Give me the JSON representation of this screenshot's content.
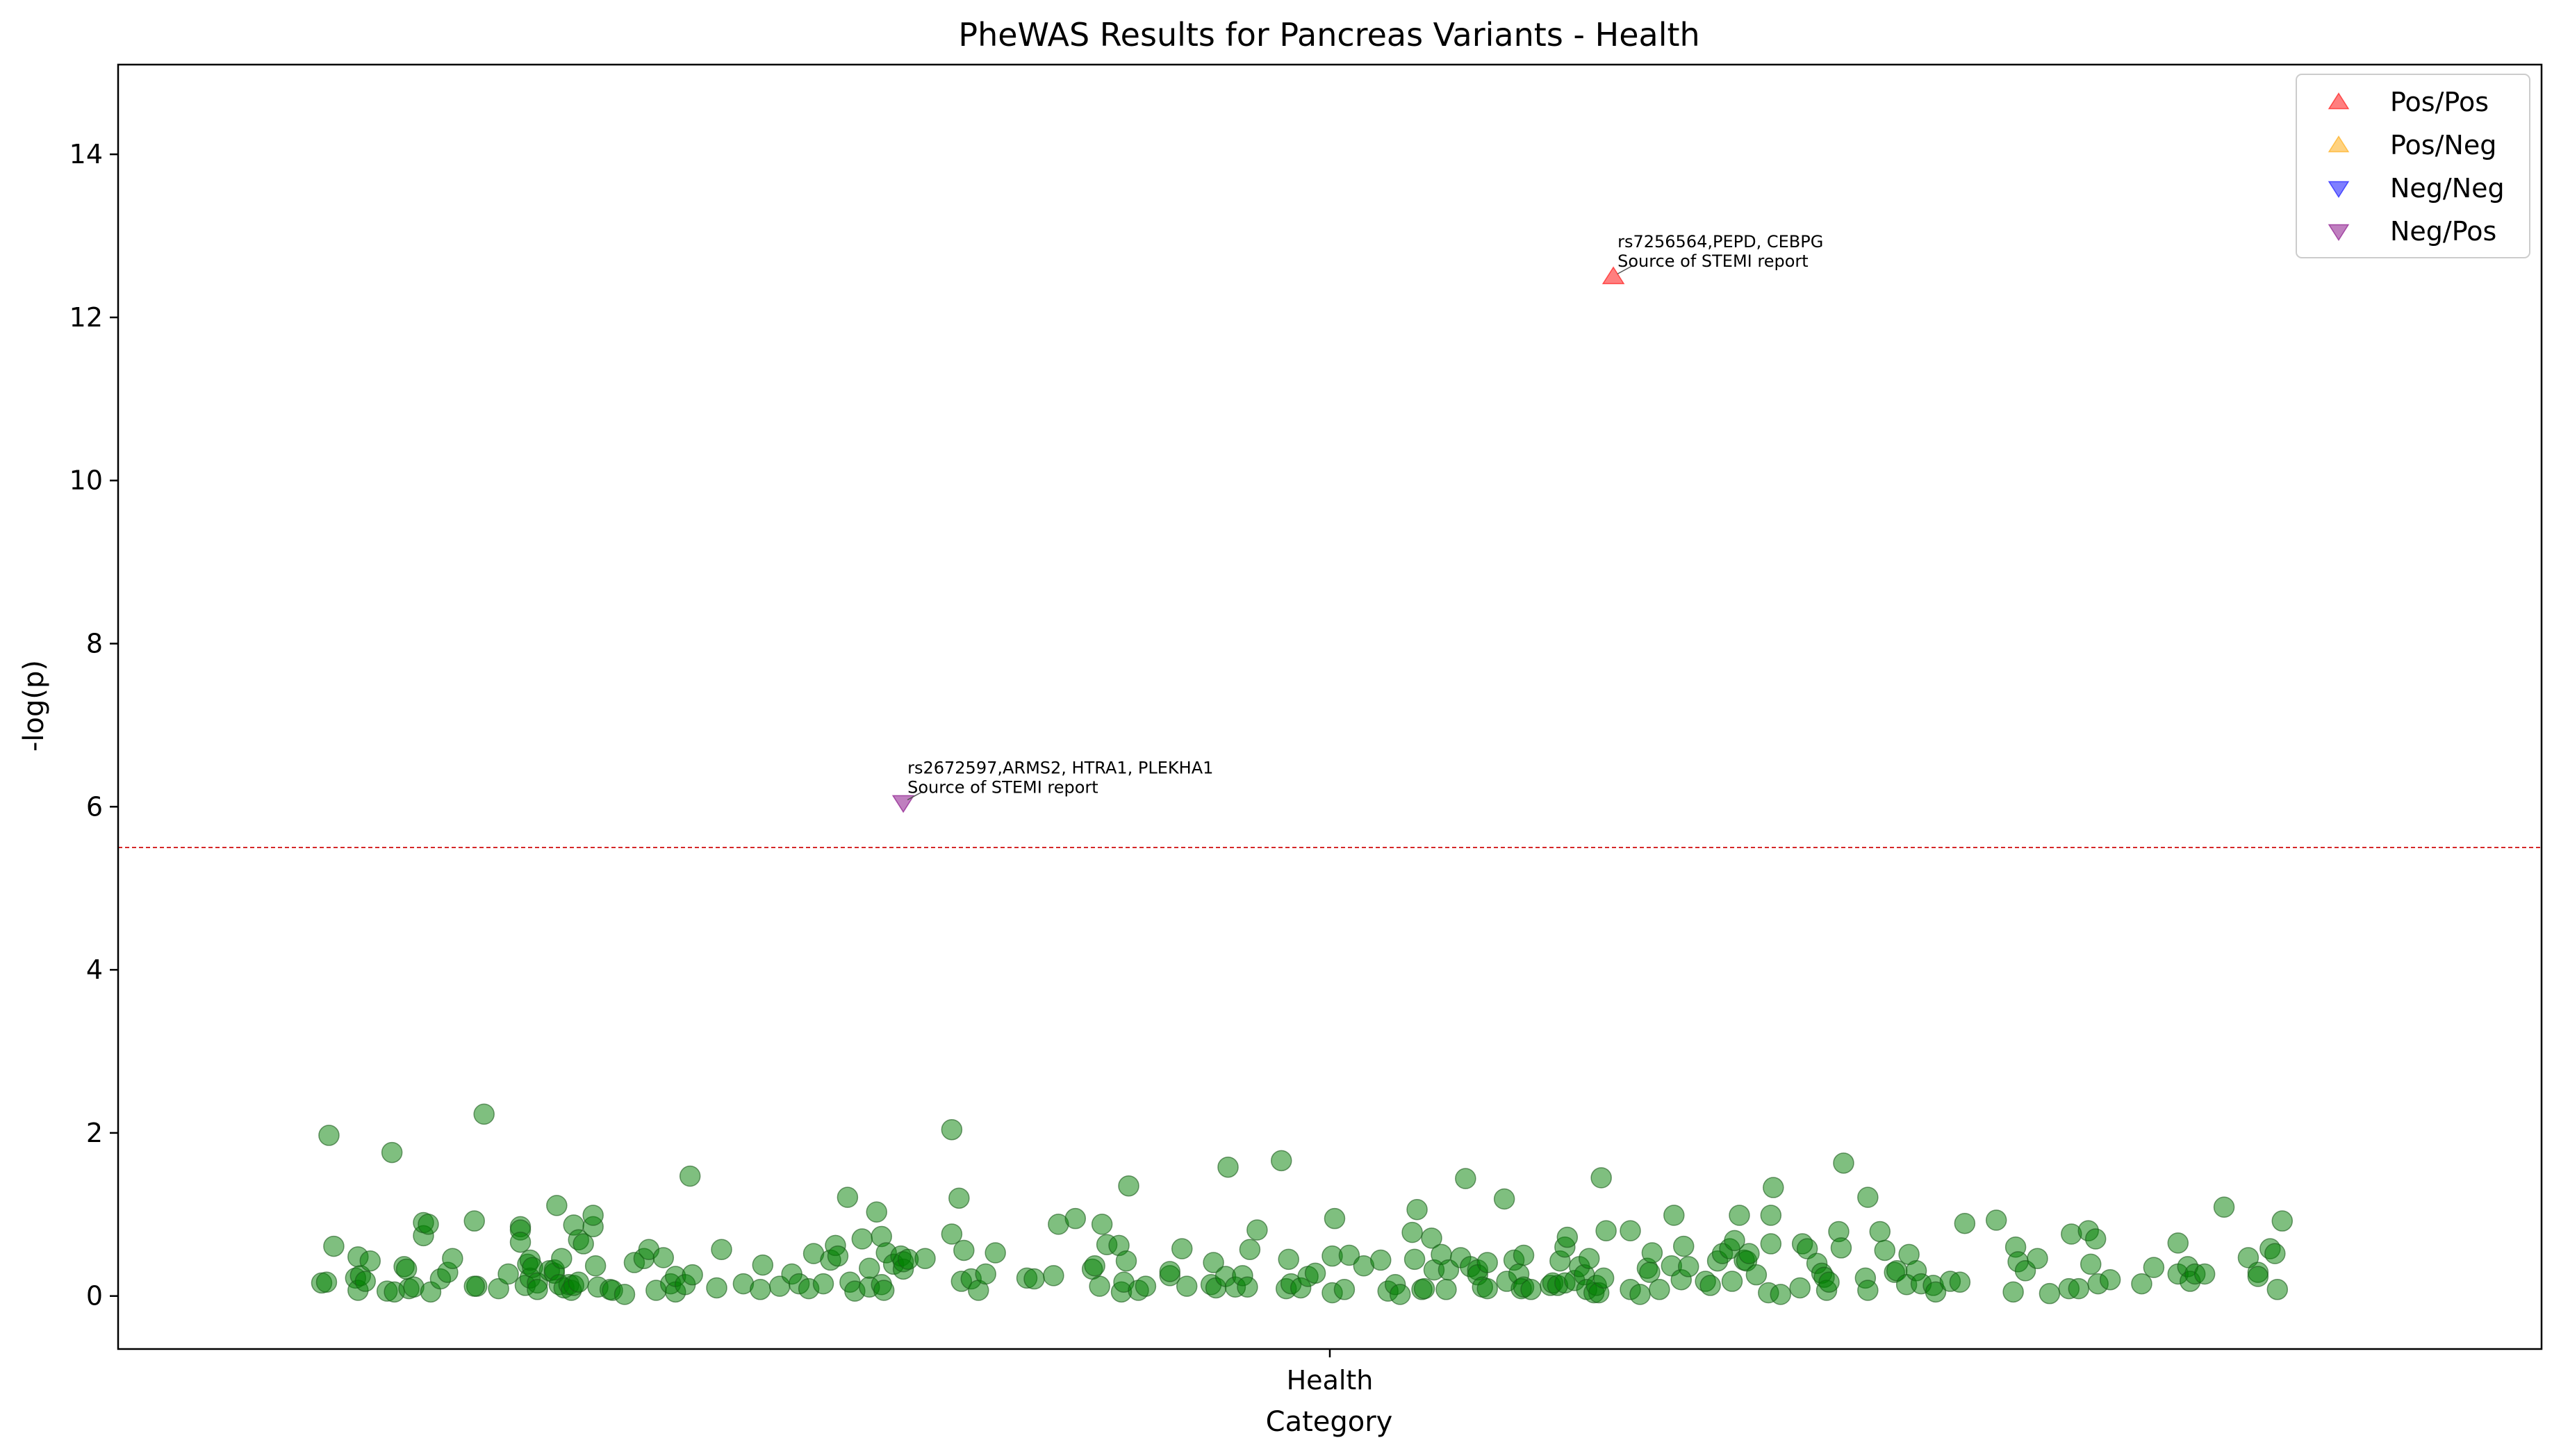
{
  "chart_data": {
    "type": "scatter",
    "title": "PheWAS Results for Pancreas Variants - Health",
    "xlabel": "Category",
    "ylabel": "-log(p)",
    "x_categories": [
      "Health"
    ],
    "ylim": [
      -0.65,
      15.1
    ],
    "yticks": [
      0,
      2,
      4,
      6,
      8,
      10,
      12,
      14
    ],
    "threshold": 5.5,
    "threshold_color": "#d62728",
    "grid": false,
    "legend_position": "top-right",
    "legend": [
      {
        "label": "Pos/Pos",
        "marker": "triangle-up",
        "color": "#ff0000"
      },
      {
        "label": "Pos/Neg",
        "marker": "triangle-up",
        "color": "#ffa500"
      },
      {
        "label": "Neg/Neg",
        "marker": "triangle-down",
        "color": "#0000ff"
      },
      {
        "label": "Neg/Pos",
        "marker": "triangle-down",
        "color": "#800080"
      }
    ],
    "nonsignificant_color": "#008000",
    "significant_points": [
      {
        "x": 0.617,
        "y": 12.5,
        "marker": "triangle-up",
        "color": "#ff0000",
        "annotation_line1": "rs7256564,PEPD, CEBPG",
        "annotation_line2": "Source of STEMI report"
      },
      {
        "x": 0.324,
        "y": 6.05,
        "marker": "triangle-down",
        "color": "#800080",
        "annotation_line1": "rs2672597,ARMS2, HTRA1, PLEKHA1",
        "annotation_line2": "Source of STEMI report"
      }
    ],
    "points": [
      [
        0.084,
        0.16
      ],
      [
        0.086,
        0.17
      ],
      [
        0.087,
        1.97
      ],
      [
        0.089,
        0.61
      ],
      [
        0.098,
        0.22
      ],
      [
        0.099,
        0.48
      ],
      [
        0.099,
        0.07
      ],
      [
        0.1,
        0.25
      ],
      [
        0.102,
        0.18
      ],
      [
        0.104,
        0.43
      ],
      [
        0.111,
        0.06
      ],
      [
        0.113,
        1.76
      ],
      [
        0.114,
        0.05
      ],
      [
        0.118,
        0.36
      ],
      [
        0.119,
        0.33
      ],
      [
        0.12,
        0.09
      ],
      [
        0.122,
        0.11
      ],
      [
        0.126,
        0.74
      ],
      [
        0.126,
        0.9
      ],
      [
        0.128,
        0.88
      ],
      [
        0.129,
        0.05
      ],
      [
        0.133,
        0.21
      ],
      [
        0.136,
        0.29
      ],
      [
        0.138,
        0.46
      ],
      [
        0.147,
        0.92
      ],
      [
        0.148,
        0.12
      ],
      [
        0.147,
        0.12
      ],
      [
        0.151,
        2.23
      ],
      [
        0.157,
        0.09
      ],
      [
        0.161,
        0.27
      ],
      [
        0.166,
        0.85
      ],
      [
        0.166,
        0.81
      ],
      [
        0.166,
        0.66
      ],
      [
        0.168,
        0.13
      ],
      [
        0.169,
        0.39
      ],
      [
        0.17,
        0.22
      ],
      [
        0.17,
        0.44
      ],
      [
        0.171,
        0.35
      ],
      [
        0.173,
        0.16
      ],
      [
        0.173,
        0.08
      ],
      [
        0.178,
        0.31
      ],
      [
        0.18,
        0.28
      ],
      [
        0.18,
        0.32
      ],
      [
        0.181,
        1.11
      ],
      [
        0.182,
        0.14
      ],
      [
        0.183,
        0.46
      ],
      [
        0.184,
        0.1
      ],
      [
        0.186,
        0.14
      ],
      [
        0.187,
        0.07
      ],
      [
        0.188,
        0.87
      ],
      [
        0.188,
        0.13
      ],
      [
        0.19,
        0.17
      ],
      [
        0.19,
        0.69
      ],
      [
        0.192,
        0.64
      ],
      [
        0.196,
        0.85
      ],
      [
        0.196,
        0.99
      ],
      [
        0.197,
        0.37
      ],
      [
        0.198,
        0.11
      ],
      [
        0.203,
        0.08
      ],
      [
        0.204,
        0.07
      ],
      [
        0.209,
        0.02
      ],
      [
        0.213,
        0.41
      ],
      [
        0.217,
        0.46
      ],
      [
        0.219,
        0.57
      ],
      [
        0.222,
        0.07
      ],
      [
        0.225,
        0.47
      ],
      [
        0.228,
        0.15
      ],
      [
        0.23,
        0.05
      ],
      [
        0.23,
        0.24
      ],
      [
        0.234,
        0.14
      ],
      [
        0.236,
        1.47
      ],
      [
        0.237,
        0.26
      ],
      [
        0.247,
        0.1
      ],
      [
        0.249,
        0.57
      ],
      [
        0.258,
        0.15
      ],
      [
        0.265,
        0.08
      ],
      [
        0.266,
        0.38
      ],
      [
        0.273,
        0.12
      ],
      [
        0.278,
        0.27
      ],
      [
        0.281,
        0.15
      ],
      [
        0.285,
        0.09
      ],
      [
        0.287,
        0.52
      ],
      [
        0.291,
        0.15
      ],
      [
        0.294,
        0.44
      ],
      [
        0.296,
        0.62
      ],
      [
        0.297,
        0.49
      ],
      [
        0.301,
        1.21
      ],
      [
        0.302,
        0.17
      ],
      [
        0.304,
        0.06
      ],
      [
        0.307,
        0.7
      ],
      [
        0.31,
        0.11
      ],
      [
        0.31,
        0.34
      ],
      [
        0.313,
        1.03
      ],
      [
        0.315,
        0.73
      ],
      [
        0.315,
        0.14
      ],
      [
        0.316,
        0.07
      ],
      [
        0.317,
        0.53
      ],
      [
        0.32,
        0.39
      ],
      [
        0.323,
        0.49
      ],
      [
        0.324,
        0.33
      ],
      [
        0.324,
        0.42
      ],
      [
        0.326,
        0.45
      ],
      [
        0.333,
        0.46
      ],
      [
        0.344,
        0.76
      ],
      [
        0.344,
        2.04
      ],
      [
        0.347,
        1.2
      ],
      [
        0.348,
        0.18
      ],
      [
        0.349,
        0.56
      ],
      [
        0.352,
        0.21
      ],
      [
        0.355,
        0.07
      ],
      [
        0.358,
        0.27
      ],
      [
        0.362,
        0.53
      ],
      [
        0.375,
        0.22
      ],
      [
        0.378,
        0.21
      ],
      [
        0.386,
        0.25
      ],
      [
        0.388,
        0.88
      ],
      [
        0.395,
        0.95
      ],
      [
        0.402,
        0.33
      ],
      [
        0.403,
        0.37
      ],
      [
        0.405,
        0.12
      ],
      [
        0.406,
        0.88
      ],
      [
        0.408,
        0.63
      ],
      [
        0.413,
        0.62
      ],
      [
        0.414,
        0.05
      ],
      [
        0.415,
        0.17
      ],
      [
        0.416,
        0.43
      ],
      [
        0.417,
        1.35
      ],
      [
        0.421,
        0.07
      ],
      [
        0.424,
        0.12
      ],
      [
        0.434,
        0.25
      ],
      [
        0.434,
        0.3
      ],
      [
        0.439,
        0.58
      ],
      [
        0.441,
        0.12
      ],
      [
        0.451,
        0.14
      ],
      [
        0.452,
        0.41
      ],
      [
        0.453,
        0.1
      ],
      [
        0.457,
        0.24
      ],
      [
        0.458,
        1.58
      ],
      [
        0.461,
        0.11
      ],
      [
        0.464,
        0.25
      ],
      [
        0.466,
        0.11
      ],
      [
        0.467,
        0.57
      ],
      [
        0.47,
        0.81
      ],
      [
        0.48,
        1.66
      ],
      [
        0.482,
        0.09
      ],
      [
        0.483,
        0.45
      ],
      [
        0.484,
        0.15
      ],
      [
        0.488,
        0.1
      ],
      [
        0.491,
        0.24
      ],
      [
        0.494,
        0.28
      ],
      [
        0.501,
        0.04
      ],
      [
        0.501,
        0.49
      ],
      [
        0.502,
        0.95
      ],
      [
        0.506,
        0.08
      ],
      [
        0.508,
        0.5
      ],
      [
        0.514,
        0.37
      ],
      [
        0.521,
        0.44
      ],
      [
        0.524,
        0.06
      ],
      [
        0.527,
        0.14
      ],
      [
        0.529,
        0.02
      ],
      [
        0.534,
        0.78
      ],
      [
        0.535,
        0.45
      ],
      [
        0.536,
        1.06
      ],
      [
        0.538,
        0.08
      ],
      [
        0.539,
        0.09
      ],
      [
        0.542,
        0.71
      ],
      [
        0.543,
        0.32
      ],
      [
        0.546,
        0.51
      ],
      [
        0.548,
        0.08
      ],
      [
        0.549,
        0.32
      ],
      [
        0.554,
        0.47
      ],
      [
        0.556,
        1.44
      ],
      [
        0.558,
        0.36
      ],
      [
        0.561,
        0.32
      ],
      [
        0.561,
        0.26
      ],
      [
        0.563,
        0.11
      ],
      [
        0.565,
        0.41
      ],
      [
        0.565,
        0.09
      ],
      [
        0.572,
        1.19
      ],
      [
        0.573,
        0.18
      ],
      [
        0.576,
        0.44
      ],
      [
        0.578,
        0.27
      ],
      [
        0.579,
        0.09
      ],
      [
        0.58,
        0.11
      ],
      [
        0.58,
        0.5
      ],
      [
        0.583,
        0.08
      ],
      [
        0.591,
        0.13
      ],
      [
        0.592,
        0.16
      ],
      [
        0.594,
        0.13
      ],
      [
        0.595,
        0.43
      ],
      [
        0.597,
        0.16
      ],
      [
        0.597,
        0.6
      ],
      [
        0.598,
        0.72
      ],
      [
        0.601,
        0.19
      ],
      [
        0.603,
        0.36
      ],
      [
        0.605,
        0.26
      ],
      [
        0.606,
        0.08
      ],
      [
        0.607,
        0.46
      ],
      [
        0.609,
        0.04
      ],
      [
        0.61,
        0.13
      ],
      [
        0.611,
        0.04
      ],
      [
        0.612,
        1.45
      ],
      [
        0.613,
        0.22
      ],
      [
        0.614,
        0.8
      ],
      [
        0.624,
        0.08
      ],
      [
        0.624,
        0.8
      ],
      [
        0.628,
        0.02
      ],
      [
        0.631,
        0.34
      ],
      [
        0.632,
        0.29
      ],
      [
        0.633,
        0.53
      ],
      [
        0.636,
        0.08
      ],
      [
        0.641,
        0.37
      ],
      [
        0.642,
        0.99
      ],
      [
        0.645,
        0.2
      ],
      [
        0.646,
        0.61
      ],
      [
        0.648,
        0.36
      ],
      [
        0.655,
        0.18
      ],
      [
        0.657,
        0.13
      ],
      [
        0.66,
        0.43
      ],
      [
        0.662,
        0.52
      ],
      [
        0.665,
        0.58
      ],
      [
        0.666,
        0.18
      ],
      [
        0.667,
        0.68
      ],
      [
        0.669,
        0.99
      ],
      [
        0.671,
        0.44
      ],
      [
        0.672,
        0.43
      ],
      [
        0.673,
        0.52
      ],
      [
        0.676,
        0.26
      ],
      [
        0.681,
        0.04
      ],
      [
        0.682,
        0.64
      ],
      [
        0.682,
        0.99
      ],
      [
        0.683,
        1.33
      ],
      [
        0.686,
        0.02
      ],
      [
        0.694,
        0.1
      ],
      [
        0.695,
        0.64
      ],
      [
        0.697,
        0.58
      ],
      [
        0.701,
        0.4
      ],
      [
        0.703,
        0.28
      ],
      [
        0.704,
        0.23
      ],
      [
        0.705,
        0.07
      ],
      [
        0.706,
        0.17
      ],
      [
        0.71,
        0.79
      ],
      [
        0.711,
        0.59
      ],
      [
        0.712,
        1.63
      ],
      [
        0.721,
        0.22
      ],
      [
        0.722,
        1.21
      ],
      [
        0.722,
        0.07
      ],
      [
        0.727,
        0.79
      ],
      [
        0.729,
        0.56
      ],
      [
        0.733,
        0.29
      ],
      [
        0.734,
        0.31
      ],
      [
        0.738,
        0.14
      ],
      [
        0.739,
        0.51
      ],
      [
        0.742,
        0.31
      ],
      [
        0.744,
        0.15
      ],
      [
        0.749,
        0.13
      ],
      [
        0.75,
        0.05
      ],
      [
        0.756,
        0.18
      ],
      [
        0.76,
        0.17
      ],
      [
        0.762,
        0.89
      ],
      [
        0.775,
        0.93
      ],
      [
        0.782,
        0.05
      ],
      [
        0.783,
        0.6
      ],
      [
        0.784,
        0.42
      ],
      [
        0.787,
        0.31
      ],
      [
        0.792,
        0.46
      ],
      [
        0.797,
        0.03
      ],
      [
        0.805,
        0.09
      ],
      [
        0.806,
        0.76
      ],
      [
        0.809,
        0.09
      ],
      [
        0.813,
        0.8
      ],
      [
        0.814,
        0.39
      ],
      [
        0.816,
        0.7
      ],
      [
        0.817,
        0.15
      ],
      [
        0.822,
        0.2
      ],
      [
        0.835,
        0.15
      ],
      [
        0.84,
        0.35
      ],
      [
        0.85,
        0.65
      ],
      [
        0.85,
        0.27
      ],
      [
        0.854,
        0.36
      ],
      [
        0.855,
        0.18
      ],
      [
        0.857,
        0.27
      ],
      [
        0.861,
        0.27
      ],
      [
        0.869,
        1.09
      ],
      [
        0.879,
        0.47
      ],
      [
        0.883,
        0.29
      ],
      [
        0.883,
        0.24
      ],
      [
        0.888,
        0.58
      ],
      [
        0.89,
        0.52
      ],
      [
        0.891,
        0.08
      ],
      [
        0.893,
        0.92
      ]
    ]
  }
}
